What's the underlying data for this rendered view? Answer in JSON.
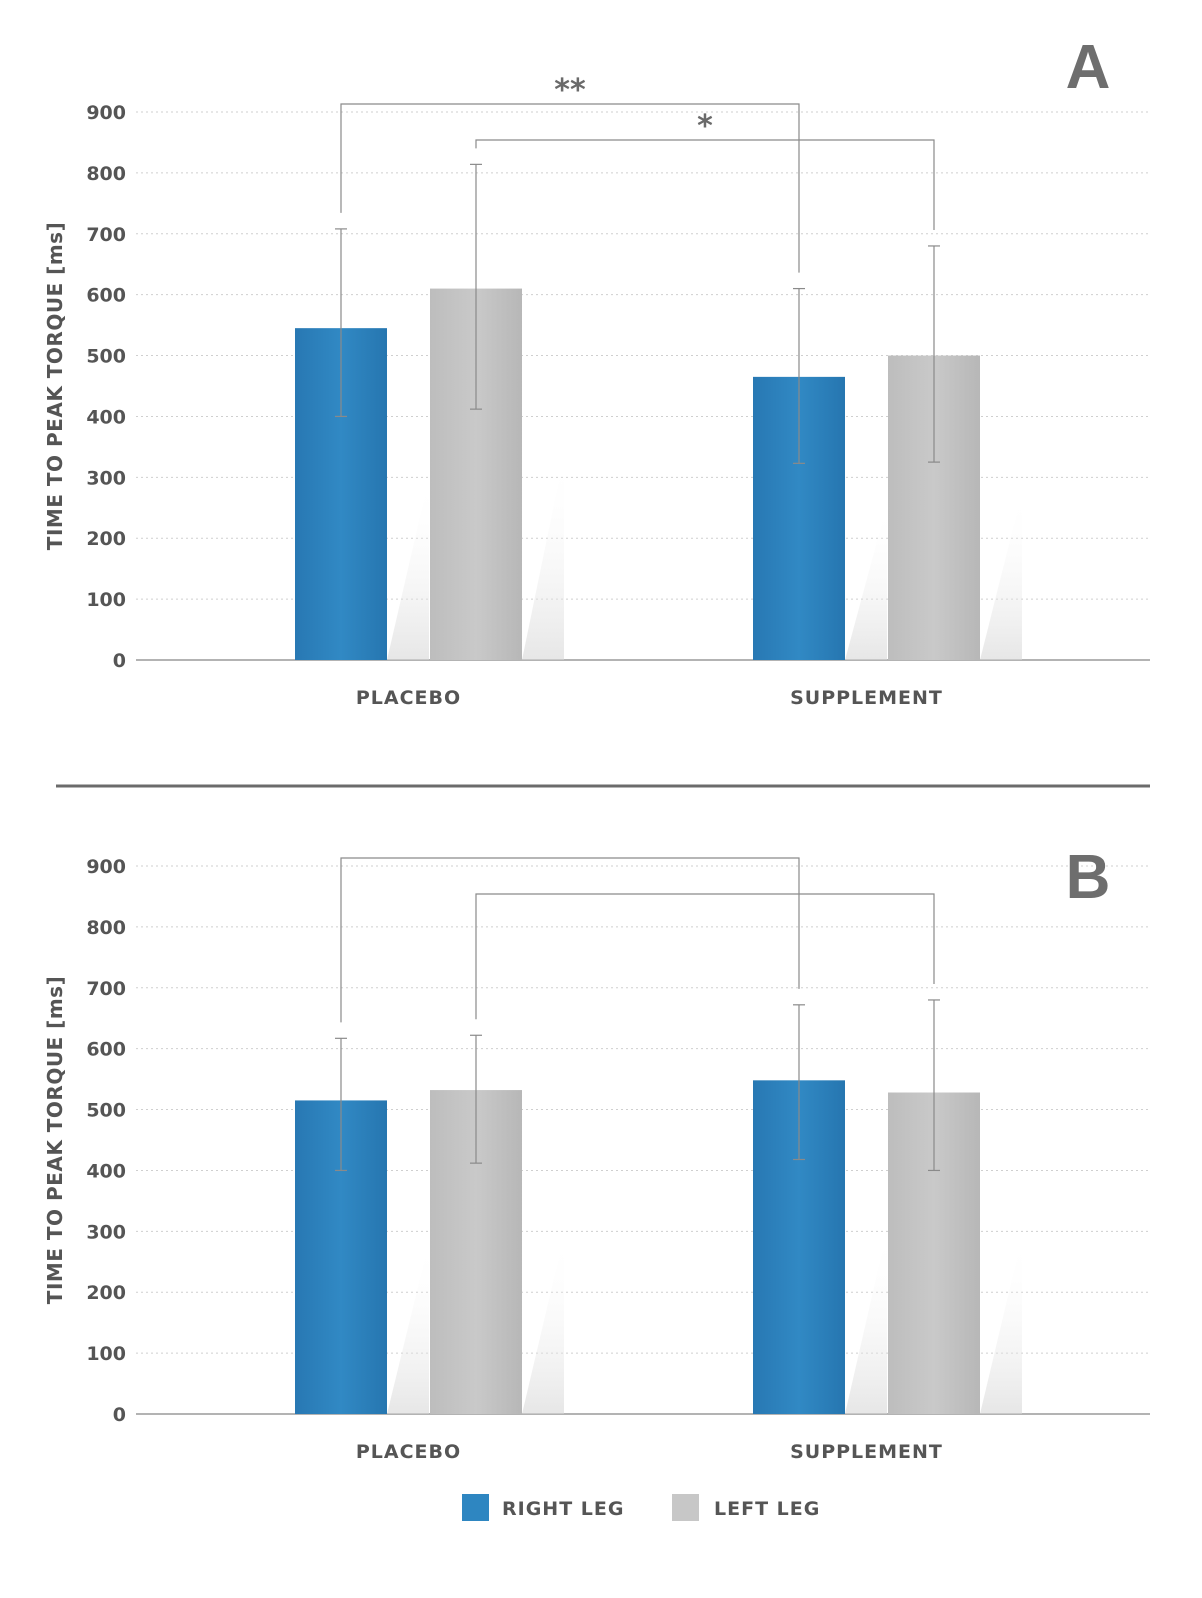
{
  "chart_data": [
    {
      "type": "bar",
      "panel_label": "A",
      "categories": [
        "PLACEBO",
        "SUPPLEMENT"
      ],
      "series": [
        {
          "name": "RIGHT LEG",
          "color": "#2e86c1",
          "values": [
            545,
            465
          ],
          "error_lower": [
            400,
            323
          ],
          "error_upper": [
            708,
            610
          ]
        },
        {
          "name": "LEFT LEG",
          "color": "#c7c7c7",
          "values": [
            610,
            500
          ],
          "error_lower": [
            412,
            325
          ],
          "error_upper": [
            814,
            680
          ]
        }
      ],
      "ylabel": "TIME TO PEAK TORQUE [ms]",
      "xlabel": "",
      "ylim": [
        0,
        900
      ],
      "yticks": [
        0,
        100,
        200,
        300,
        400,
        500,
        600,
        700,
        800,
        900
      ],
      "grid": true,
      "significance": [
        {
          "series": "RIGHT LEG",
          "label": "**"
        },
        {
          "series": "LEFT LEG",
          "label": "*"
        }
      ]
    },
    {
      "type": "bar",
      "panel_label": "B",
      "categories": [
        "PLACEBO",
        "SUPPLEMENT"
      ],
      "series": [
        {
          "name": "RIGHT LEG",
          "color": "#2e86c1",
          "values": [
            515,
            548
          ],
          "error_lower": [
            400,
            418
          ],
          "error_upper": [
            617,
            672
          ]
        },
        {
          "name": "LEFT LEG",
          "color": "#c7c7c7",
          "values": [
            532,
            528
          ],
          "error_lower": [
            412,
            400
          ],
          "error_upper": [
            622,
            680
          ]
        }
      ],
      "ylabel": "TIME TO PEAK TORQUE [ms]",
      "xlabel": "",
      "ylim": [
        0,
        900
      ],
      "yticks": [
        0,
        100,
        200,
        300,
        400,
        500,
        600,
        700,
        800,
        900
      ],
      "grid": true,
      "significance": [
        {
          "series": "RIGHT LEG",
          "label": ""
        },
        {
          "series": "LEFT LEG",
          "label": ""
        }
      ]
    }
  ],
  "legend": {
    "items": [
      {
        "label": "RIGHT LEG",
        "color": "#2e86c1"
      },
      {
        "label": "LEFT LEG",
        "color": "#c7c7c7"
      }
    ]
  }
}
